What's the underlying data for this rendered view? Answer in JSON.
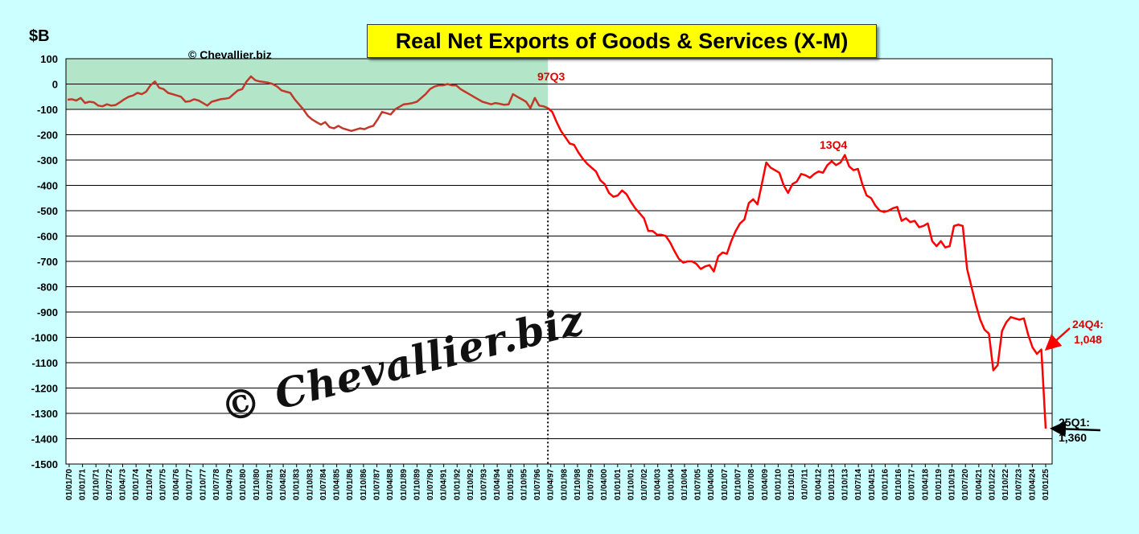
{
  "chart_data": {
    "type": "line",
    "title": "Real Net Exports of Goods & Services (X-M)",
    "ylabel": "$B",
    "ylim": [
      -1500,
      100
    ],
    "yticks": [
      100,
      0,
      -100,
      -200,
      -300,
      -400,
      -500,
      -600,
      -700,
      -800,
      -900,
      -1000,
      -1100,
      -1200,
      -1300,
      -1400,
      -1500
    ],
    "grid": true,
    "copyright": "© Chevallier.biz",
    "watermark": "© Chevallier.biz",
    "x_tick_labels": [
      "01/01/70",
      "01/01/71",
      "01/10/71",
      "01/07/72",
      "01/04/73",
      "01/01/74",
      "01/10/74",
      "01/07/75",
      "01/04/76",
      "01/01/77",
      "01/10/77",
      "01/07/78",
      "01/04/79",
      "01/01/80",
      "01/10/80",
      "01/07/81",
      "01/04/82",
      "01/01/83",
      "01/10/83",
      "01/07/84",
      "01/04/85",
      "01/01/86",
      "01/10/86",
      "01/07/87",
      "01/04/88",
      "01/01/89",
      "01/10/89",
      "01/07/90",
      "01/04/91",
      "01/01/92",
      "01/10/92",
      "01/07/93",
      "01/04/94",
      "01/01/95",
      "01/10/95",
      "01/07/96",
      "01/04/97",
      "01/01/98",
      "01/10/98",
      "01/07/99",
      "01/04/00",
      "01/01/01",
      "01/10/01",
      "01/07/02",
      "01/04/03",
      "01/01/04",
      "01/10/04",
      "01/07/05",
      "01/04/06",
      "01/01/07",
      "01/10/07",
      "01/07/08",
      "01/04/09",
      "01/01/10",
      "01/10/10",
      "01/07/11",
      "01/04/12",
      "01/01/13",
      "01/10/13",
      "01/07/14",
      "01/04/15",
      "01/01/16",
      "01/10/16",
      "01/07/17",
      "01/04/18",
      "01/01/19",
      "01/10/19",
      "01/07/20",
      "01/04/21",
      "01/01/22",
      "01/10/22",
      "01/07/23",
      "01/04/24",
      "01/01/25"
    ],
    "shaded_band": {
      "y_from": -100,
      "y_to": 100,
      "until_quarter": "97Q3",
      "color": "#b3e6c8"
    },
    "marker_line": {
      "at": "97Q3",
      "style": "dotted"
    },
    "series": [
      {
        "start_quarter": "1970Q1",
        "red_from_quarter": "1997Q3",
        "values": [
          -62,
          -60,
          -65,
          -55,
          -75,
          -70,
          -72,
          -85,
          -88,
          -80,
          -85,
          -83,
          -72,
          -60,
          -50,
          -45,
          -35,
          -40,
          -30,
          -5,
          10,
          -15,
          -20,
          -35,
          -40,
          -45,
          -50,
          -70,
          -68,
          -60,
          -65,
          -75,
          -85,
          -70,
          -65,
          -60,
          -58,
          -55,
          -40,
          -25,
          -20,
          10,
          30,
          15,
          10,
          8,
          5,
          0,
          -10,
          -25,
          -30,
          -35,
          -60,
          -80,
          -100,
          -125,
          -140,
          -150,
          -160,
          -150,
          -170,
          -175,
          -165,
          -175,
          -180,
          -185,
          -180,
          -175,
          -178,
          -170,
          -165,
          -140,
          -110,
          -115,
          -120,
          -100,
          -90,
          -80,
          -78,
          -75,
          -70,
          -55,
          -40,
          -20,
          -10,
          -5,
          -5,
          0,
          -5,
          -5,
          -20,
          -30,
          -40,
          -50,
          -60,
          -70,
          -75,
          -80,
          -75,
          -78,
          -82,
          -80,
          -40,
          -50,
          -60,
          -70,
          -95,
          -55,
          -85,
          -88,
          -95,
          -110,
          -150,
          -185,
          -210,
          -235,
          -240,
          -270,
          -295,
          -315,
          -330,
          -345,
          -380,
          -395,
          -430,
          -445,
          -440,
          -420,
          -435,
          -465,
          -490,
          -510,
          -530,
          -580,
          -580,
          -595,
          -595,
          -600,
          -625,
          -660,
          -690,
          -705,
          -700,
          -700,
          -710,
          -730,
          -720,
          -715,
          -740,
          -680,
          -665,
          -670,
          -620,
          -580,
          -550,
          -535,
          -470,
          -455,
          -475,
          -395,
          -310,
          -330,
          -340,
          -350,
          -400,
          -430,
          -395,
          -385,
          -355,
          -360,
          -370,
          -355,
          -345,
          -350,
          -320,
          -305,
          -320,
          -310,
          -280,
          -325,
          -340,
          -335,
          -395,
          -440,
          -450,
          -480,
          -500,
          -505,
          -500,
          -490,
          -485,
          -540,
          -530,
          -545,
          -540,
          -565,
          -560,
          -550,
          -620,
          -640,
          -620,
          -645,
          -640,
          -560,
          -555,
          -560,
          -730,
          -800,
          -870,
          -930,
          -970,
          -985,
          -1130,
          -1110,
          -975,
          -940,
          -920,
          -925,
          -930,
          -925,
          -990,
          -1040,
          -1065,
          -1048,
          -1360
        ]
      }
    ],
    "annotations": [
      {
        "text": "97Q3",
        "quarter": "1997Q3"
      },
      {
        "text": "13Q4",
        "quarter": "2013Q4"
      },
      {
        "text_line1": "24Q4:",
        "text_line2": "1,048",
        "quarter": "2024Q4",
        "value": -1048
      },
      {
        "text_line1": "25Q1:",
        "text_line2": "1,360",
        "quarter": "2025Q1",
        "value": -1360
      }
    ],
    "colors": {
      "early_line": "#c0392b",
      "late_line": "#ff0000",
      "shade": "#b3e6c8",
      "background": "#ccffff",
      "title_box": "#ffff00"
    }
  }
}
